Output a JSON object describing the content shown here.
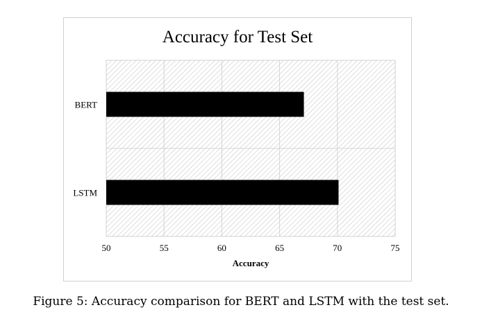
{
  "caption": "Figure 5: Accuracy comparison for BERT and LSTM with the test set.",
  "chart_data": {
    "type": "bar",
    "orientation": "horizontal",
    "title": "Accuracy for Test Set",
    "xlabel": "Accuracy",
    "ylabel": "",
    "categories": [
      "BERT",
      "LSTM"
    ],
    "values": [
      67.1,
      70.1
    ],
    "xlim": [
      50,
      75
    ],
    "xticks": [
      50,
      55,
      60,
      65,
      70,
      75
    ],
    "grid": true,
    "legend": "none",
    "bar_color": "#000000",
    "background": "diagonal hatch"
  }
}
